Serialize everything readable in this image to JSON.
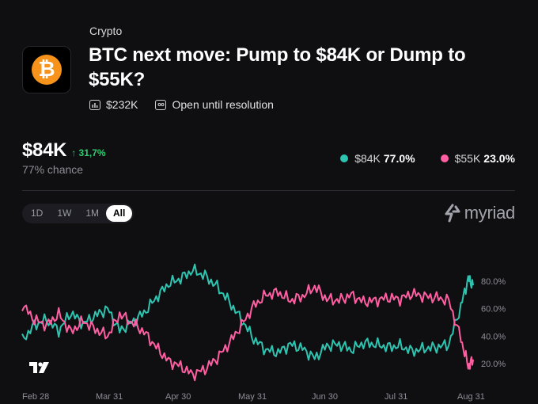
{
  "market": {
    "category": "Crypto",
    "title": "BTC next move: Pump to $84K or Dump to $55K?",
    "volume": "$232K",
    "status": "Open until resolution",
    "logo_icon": "bitcoin-icon",
    "logo_symbol": "₿",
    "logo_color": "#f7931a"
  },
  "price": {
    "value": "$84K",
    "change": "↑ 31,7%",
    "chance": "77% chance"
  },
  "legend": [
    {
      "label": "$84K",
      "pct": "77.0%",
      "color": "#2ec4b0"
    },
    {
      "label": "$55K",
      "pct": "23.0%",
      "color": "#ff5fa2"
    }
  ],
  "ranges": [
    "1D",
    "1W",
    "1M",
    "All"
  ],
  "selected_range": "All",
  "brand": "myriad",
  "chart_data": {
    "type": "line",
    "x_ticks": [
      "Feb 28",
      "Mar 31",
      "Apr 30",
      "May 31",
      "Jun 30",
      "Jul 31",
      "Aug 31"
    ],
    "y_ticks": [
      "80.0%",
      "60.0%",
      "40.0%",
      "20.0%"
    ],
    "ylim": [
      0,
      100
    ],
    "grid": false,
    "x": [
      0,
      5,
      10,
      15,
      20,
      25,
      30,
      35,
      40,
      45,
      50,
      55,
      60,
      65,
      70,
      75,
      80,
      85,
      90,
      95,
      100,
      105,
      110,
      115,
      120,
      125,
      130,
      135,
      140,
      145,
      150,
      155,
      160,
      165,
      170,
      175,
      180,
      183,
      185
    ],
    "series": [
      {
        "name": "$84K",
        "color": "#2ec4b0",
        "values": [
          37,
          48,
          52,
          44,
          57,
          49,
          55,
          60,
          44,
          50,
          57,
          68,
          78,
          82,
          88,
          84,
          76,
          65,
          52,
          38,
          30,
          28,
          34,
          31,
          24,
          33,
          34,
          30,
          35,
          34,
          32,
          33,
          29,
          31,
          32,
          34,
          62,
          82,
          77
        ]
      },
      {
        "name": "$55K",
        "color": "#ff5fa2",
        "values": [
          63,
          52,
          48,
          56,
          43,
          51,
          45,
          40,
          56,
          50,
          43,
          32,
          22,
          18,
          12,
          16,
          24,
          35,
          48,
          62,
          70,
          72,
          66,
          69,
          76,
          67,
          66,
          70,
          65,
          66,
          68,
          67,
          71,
          69,
          68,
          66,
          38,
          18,
          23
        ]
      }
    ]
  }
}
